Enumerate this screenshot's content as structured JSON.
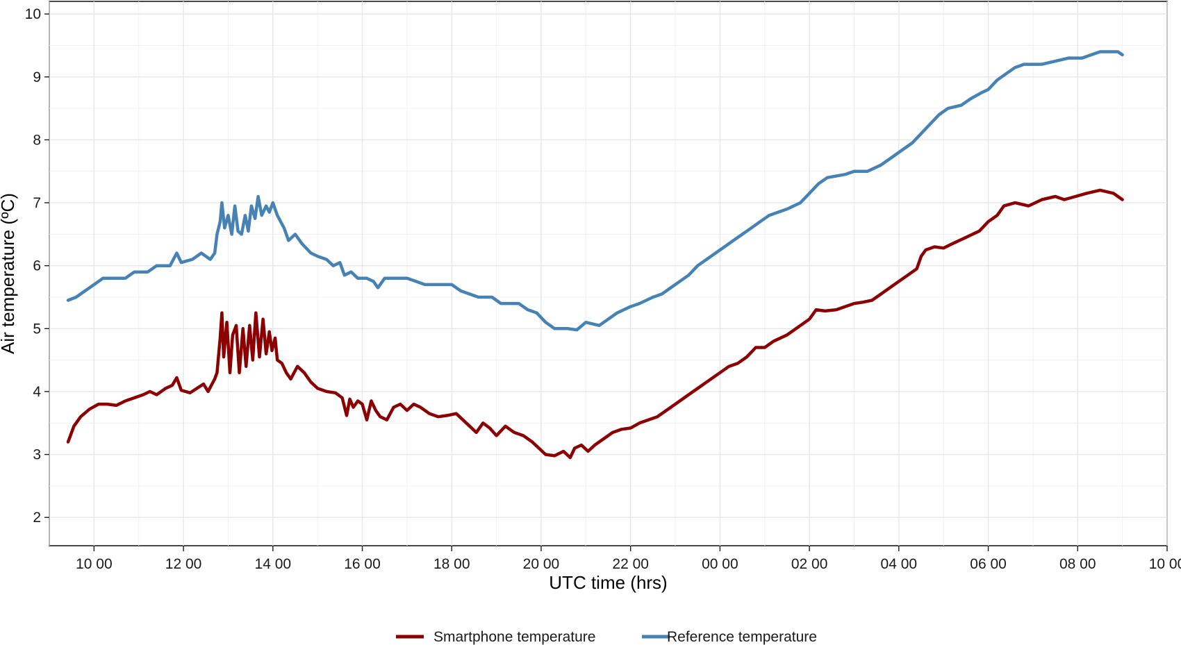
{
  "chart_data": {
    "type": "line",
    "title": "",
    "xlabel": "UTC time (hrs)",
    "ylabel": "Air temperature (ºC)",
    "x_unit": "hours since 10:00 UTC",
    "xlim": [
      -1,
      24
    ],
    "ylim": [
      1.55,
      10.2
    ],
    "grid": true,
    "legend_position": "bottom",
    "x_ticks": [
      {
        "x": 0,
        "label": "10 00"
      },
      {
        "x": 2,
        "label": "12 00"
      },
      {
        "x": 4,
        "label": "14 00"
      },
      {
        "x": 6,
        "label": "16 00"
      },
      {
        "x": 8,
        "label": "18 00"
      },
      {
        "x": 10,
        "label": "20 00"
      },
      {
        "x": 12,
        "label": "22 00"
      },
      {
        "x": 14,
        "label": "00 00"
      },
      {
        "x": 16,
        "label": "02 00"
      },
      {
        "x": 18,
        "label": "04 00"
      },
      {
        "x": 20,
        "label": "06 00"
      },
      {
        "x": 22,
        "label": "08 00"
      },
      {
        "x": 24,
        "label": "10 00"
      }
    ],
    "y_ticks": [
      2,
      3,
      4,
      5,
      6,
      7,
      8,
      9,
      10
    ],
    "series": [
      {
        "name": "Smartphone temperature",
        "color": "#8b0000",
        "points": [
          [
            -0.58,
            3.2
          ],
          [
            -0.45,
            3.45
          ],
          [
            -0.3,
            3.6
          ],
          [
            -0.1,
            3.72
          ],
          [
            0.1,
            3.8
          ],
          [
            0.3,
            3.8
          ],
          [
            0.5,
            3.78
          ],
          [
            0.7,
            3.85
          ],
          [
            0.9,
            3.9
          ],
          [
            1.1,
            3.95
          ],
          [
            1.25,
            4.0
          ],
          [
            1.4,
            3.95
          ],
          [
            1.6,
            4.05
          ],
          [
            1.75,
            4.1
          ],
          [
            1.85,
            4.22
          ],
          [
            1.95,
            4.02
          ],
          [
            2.15,
            3.98
          ],
          [
            2.3,
            4.05
          ],
          [
            2.45,
            4.12
          ],
          [
            2.55,
            4.0
          ],
          [
            2.7,
            4.2
          ],
          [
            2.75,
            4.3
          ],
          [
            2.82,
            4.85
          ],
          [
            2.86,
            5.25
          ],
          [
            2.9,
            4.55
          ],
          [
            2.97,
            5.1
          ],
          [
            3.04,
            4.3
          ],
          [
            3.1,
            4.9
          ],
          [
            3.18,
            5.05
          ],
          [
            3.25,
            4.3
          ],
          [
            3.33,
            5.0
          ],
          [
            3.4,
            4.4
          ],
          [
            3.48,
            5.05
          ],
          [
            3.55,
            4.5
          ],
          [
            3.62,
            5.25
          ],
          [
            3.7,
            4.55
          ],
          [
            3.78,
            5.15
          ],
          [
            3.85,
            4.6
          ],
          [
            3.92,
            4.95
          ],
          [
            3.98,
            4.65
          ],
          [
            4.05,
            4.85
          ],
          [
            4.1,
            4.5
          ],
          [
            4.2,
            4.45
          ],
          [
            4.3,
            4.3
          ],
          [
            4.4,
            4.2
          ],
          [
            4.55,
            4.4
          ],
          [
            4.7,
            4.3
          ],
          [
            4.85,
            4.15
          ],
          [
            5.0,
            4.05
          ],
          [
            5.2,
            4.0
          ],
          [
            5.4,
            3.98
          ],
          [
            5.55,
            3.9
          ],
          [
            5.65,
            3.62
          ],
          [
            5.72,
            3.88
          ],
          [
            5.8,
            3.75
          ],
          [
            5.9,
            3.85
          ],
          [
            6.0,
            3.8
          ],
          [
            6.1,
            3.55
          ],
          [
            6.2,
            3.85
          ],
          [
            6.3,
            3.7
          ],
          [
            6.4,
            3.6
          ],
          [
            6.55,
            3.55
          ],
          [
            6.7,
            3.75
          ],
          [
            6.85,
            3.8
          ],
          [
            7.0,
            3.7
          ],
          [
            7.15,
            3.8
          ],
          [
            7.3,
            3.75
          ],
          [
            7.5,
            3.65
          ],
          [
            7.7,
            3.6
          ],
          [
            7.9,
            3.62
          ],
          [
            8.1,
            3.65
          ],
          [
            8.25,
            3.55
          ],
          [
            8.4,
            3.45
          ],
          [
            8.55,
            3.35
          ],
          [
            8.7,
            3.5
          ],
          [
            8.85,
            3.42
          ],
          [
            9.0,
            3.3
          ],
          [
            9.2,
            3.45
          ],
          [
            9.4,
            3.35
          ],
          [
            9.6,
            3.3
          ],
          [
            9.8,
            3.2
          ],
          [
            9.95,
            3.1
          ],
          [
            10.1,
            3.0
          ],
          [
            10.3,
            2.98
          ],
          [
            10.5,
            3.05
          ],
          [
            10.65,
            2.95
          ],
          [
            10.75,
            3.1
          ],
          [
            10.9,
            3.15
          ],
          [
            11.05,
            3.05
          ],
          [
            11.2,
            3.15
          ],
          [
            11.4,
            3.25
          ],
          [
            11.6,
            3.35
          ],
          [
            11.8,
            3.4
          ],
          [
            12.0,
            3.42
          ],
          [
            12.2,
            3.5
          ],
          [
            12.4,
            3.55
          ],
          [
            12.6,
            3.6
          ],
          [
            12.8,
            3.7
          ],
          [
            13.0,
            3.8
          ],
          [
            13.2,
            3.9
          ],
          [
            13.4,
            4.0
          ],
          [
            13.6,
            4.1
          ],
          [
            13.8,
            4.2
          ],
          [
            14.0,
            4.3
          ],
          [
            14.2,
            4.4
          ],
          [
            14.4,
            4.45
          ],
          [
            14.6,
            4.55
          ],
          [
            14.8,
            4.7
          ],
          [
            15.0,
            4.7
          ],
          [
            15.2,
            4.8
          ],
          [
            15.5,
            4.9
          ],
          [
            15.8,
            5.05
          ],
          [
            16.0,
            5.15
          ],
          [
            16.15,
            5.3
          ],
          [
            16.35,
            5.28
          ],
          [
            16.6,
            5.3
          ],
          [
            16.8,
            5.35
          ],
          [
            17.0,
            5.4
          ],
          [
            17.2,
            5.42
          ],
          [
            17.4,
            5.45
          ],
          [
            17.6,
            5.55
          ],
          [
            17.8,
            5.65
          ],
          [
            18.0,
            5.75
          ],
          [
            18.2,
            5.85
          ],
          [
            18.4,
            5.95
          ],
          [
            18.5,
            6.15
          ],
          [
            18.6,
            6.25
          ],
          [
            18.8,
            6.3
          ],
          [
            19.0,
            6.28
          ],
          [
            19.2,
            6.35
          ],
          [
            19.5,
            6.45
          ],
          [
            19.8,
            6.55
          ],
          [
            20.0,
            6.7
          ],
          [
            20.2,
            6.8
          ],
          [
            20.35,
            6.95
          ],
          [
            20.6,
            7.0
          ],
          [
            20.9,
            6.95
          ],
          [
            21.2,
            7.05
          ],
          [
            21.5,
            7.1
          ],
          [
            21.7,
            7.05
          ],
          [
            21.95,
            7.1
          ],
          [
            22.2,
            7.15
          ],
          [
            22.5,
            7.2
          ],
          [
            22.8,
            7.15
          ],
          [
            23.0,
            7.05
          ]
        ]
      },
      {
        "name": "Reference temperature",
        "color": "#4682b4",
        "points": [
          [
            -0.58,
            5.45
          ],
          [
            -0.4,
            5.5
          ],
          [
            -0.2,
            5.6
          ],
          [
            0.0,
            5.7
          ],
          [
            0.2,
            5.8
          ],
          [
            0.5,
            5.8
          ],
          [
            0.7,
            5.8
          ],
          [
            0.9,
            5.9
          ],
          [
            1.2,
            5.9
          ],
          [
            1.4,
            6.0
          ],
          [
            1.7,
            6.0
          ],
          [
            1.85,
            6.2
          ],
          [
            1.95,
            6.05
          ],
          [
            2.2,
            6.1
          ],
          [
            2.4,
            6.2
          ],
          [
            2.6,
            6.1
          ],
          [
            2.7,
            6.2
          ],
          [
            2.75,
            6.5
          ],
          [
            2.82,
            6.7
          ],
          [
            2.86,
            7.0
          ],
          [
            2.92,
            6.6
          ],
          [
            3.0,
            6.8
          ],
          [
            3.08,
            6.5
          ],
          [
            3.15,
            6.95
          ],
          [
            3.22,
            6.55
          ],
          [
            3.3,
            6.5
          ],
          [
            3.38,
            6.8
          ],
          [
            3.45,
            6.55
          ],
          [
            3.52,
            6.95
          ],
          [
            3.6,
            6.75
          ],
          [
            3.67,
            7.1
          ],
          [
            3.75,
            6.8
          ],
          [
            3.85,
            6.95
          ],
          [
            3.92,
            6.85
          ],
          [
            4.0,
            7.0
          ],
          [
            4.1,
            6.8
          ],
          [
            4.25,
            6.6
          ],
          [
            4.35,
            6.4
          ],
          [
            4.5,
            6.5
          ],
          [
            4.65,
            6.35
          ],
          [
            4.85,
            6.2
          ],
          [
            5.0,
            6.15
          ],
          [
            5.2,
            6.1
          ],
          [
            5.35,
            6.0
          ],
          [
            5.5,
            6.05
          ],
          [
            5.6,
            5.85
          ],
          [
            5.75,
            5.9
          ],
          [
            5.9,
            5.8
          ],
          [
            6.1,
            5.8
          ],
          [
            6.25,
            5.75
          ],
          [
            6.35,
            5.65
          ],
          [
            6.5,
            5.8
          ],
          [
            7.0,
            5.8
          ],
          [
            7.2,
            5.75
          ],
          [
            7.4,
            5.7
          ],
          [
            7.7,
            5.7
          ],
          [
            8.0,
            5.7
          ],
          [
            8.2,
            5.6
          ],
          [
            8.4,
            5.55
          ],
          [
            8.6,
            5.5
          ],
          [
            8.9,
            5.5
          ],
          [
            9.1,
            5.4
          ],
          [
            9.3,
            5.4
          ],
          [
            9.5,
            5.4
          ],
          [
            9.7,
            5.3
          ],
          [
            9.9,
            5.25
          ],
          [
            10.1,
            5.1
          ],
          [
            10.3,
            5.0
          ],
          [
            10.6,
            5.0
          ],
          [
            10.8,
            4.98
          ],
          [
            11.0,
            5.1
          ],
          [
            11.3,
            5.05
          ],
          [
            11.5,
            5.15
          ],
          [
            11.7,
            5.25
          ],
          [
            12.0,
            5.35
          ],
          [
            12.2,
            5.4
          ],
          [
            12.5,
            5.5
          ],
          [
            12.7,
            5.55
          ],
          [
            12.9,
            5.65
          ],
          [
            13.1,
            5.75
          ],
          [
            13.3,
            5.85
          ],
          [
            13.5,
            6.0
          ],
          [
            13.7,
            6.1
          ],
          [
            13.9,
            6.2
          ],
          [
            14.1,
            6.3
          ],
          [
            14.3,
            6.4
          ],
          [
            14.5,
            6.5
          ],
          [
            14.7,
            6.6
          ],
          [
            14.9,
            6.7
          ],
          [
            15.1,
            6.8
          ],
          [
            15.3,
            6.85
          ],
          [
            15.5,
            6.9
          ],
          [
            15.8,
            7.0
          ],
          [
            16.0,
            7.15
          ],
          [
            16.2,
            7.3
          ],
          [
            16.4,
            7.4
          ],
          [
            16.8,
            7.45
          ],
          [
            17.0,
            7.5
          ],
          [
            17.3,
            7.5
          ],
          [
            17.6,
            7.6
          ],
          [
            17.8,
            7.7
          ],
          [
            18.0,
            7.8
          ],
          [
            18.3,
            7.95
          ],
          [
            18.5,
            8.1
          ],
          [
            18.7,
            8.25
          ],
          [
            18.9,
            8.4
          ],
          [
            19.1,
            8.5
          ],
          [
            19.4,
            8.55
          ],
          [
            19.6,
            8.65
          ],
          [
            19.85,
            8.75
          ],
          [
            20.0,
            8.8
          ],
          [
            20.2,
            8.95
          ],
          [
            20.4,
            9.05
          ],
          [
            20.6,
            9.15
          ],
          [
            20.8,
            9.2
          ],
          [
            21.2,
            9.2
          ],
          [
            21.5,
            9.25
          ],
          [
            21.8,
            9.3
          ],
          [
            22.1,
            9.3
          ],
          [
            22.3,
            9.35
          ],
          [
            22.5,
            9.4
          ],
          [
            22.9,
            9.4
          ],
          [
            23.0,
            9.35
          ]
        ]
      }
    ]
  }
}
